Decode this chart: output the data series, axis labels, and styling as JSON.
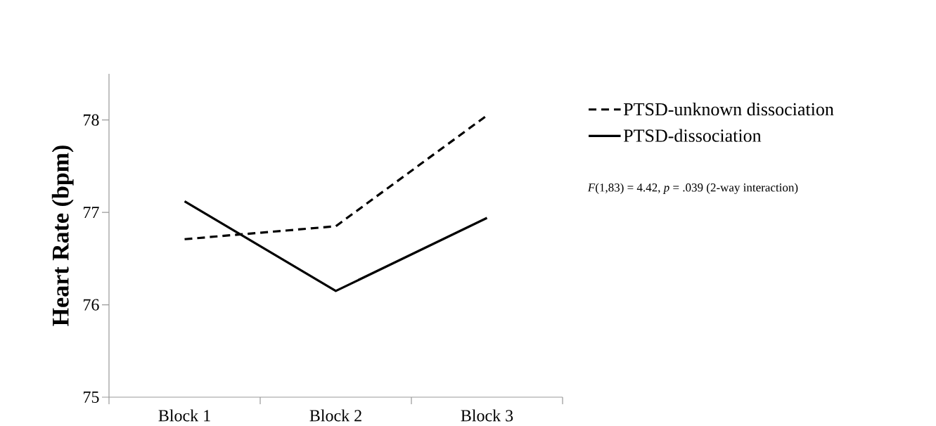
{
  "chart_data": {
    "type": "line",
    "ylabel": "Heart Rate (bpm)",
    "categories": [
      "Block 1",
      "Block 2",
      "Block 3"
    ],
    "series": [
      {
        "name": "PTSD-unknown dissociation",
        "color": "#000000",
        "line_style": "dashed",
        "values": [
          76.71,
          76.85,
          78.05
        ]
      },
      {
        "name": "PTSD-dissociation",
        "color": "#000000",
        "line_style": "solid",
        "values": [
          77.12,
          76.15,
          76.94
        ]
      }
    ],
    "ylim": [
      75,
      78.5
    ],
    "yticks": [
      75,
      76,
      77,
      78
    ],
    "legend": "right",
    "marker": "none",
    "annotations": [
      "*F*(1,83) = 4.42, *p* = .039 (2-way interaction)"
    ]
  }
}
